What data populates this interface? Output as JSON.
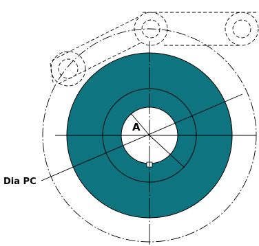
{
  "labels": {
    "center": "A",
    "pitch_circle": "Dia PC"
  },
  "colors": {
    "disc_fill": "#0e7480",
    "line": "#000000",
    "background": "#ffffff"
  }
}
